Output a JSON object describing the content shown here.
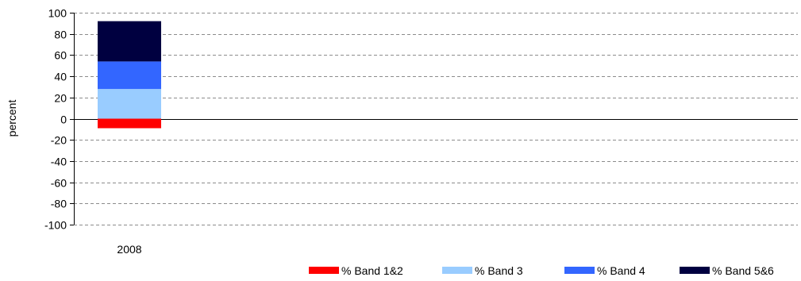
{
  "chart_data": {
    "type": "bar",
    "stacked": true,
    "categories": [
      "2008"
    ],
    "series": [
      {
        "name": "% Band 1&2",
        "values": [
          -9
        ],
        "color": "#ff0000"
      },
      {
        "name": "% Band 3",
        "values": [
          28
        ],
        "color": "#99ccff"
      },
      {
        "name": "% Band 4",
        "values": [
          26
        ],
        "color": "#3366ff"
      },
      {
        "name": "% Band 5&6",
        "values": [
          38
        ],
        "color": "#000040"
      }
    ],
    "title": "",
    "xlabel": "",
    "ylabel": "percent",
    "ylim": [
      -100,
      100
    ],
    "yticks": [
      100,
      80,
      60,
      40,
      20,
      0,
      -20,
      -40,
      -60,
      -80,
      -100
    ],
    "grid": "horizontal dashed",
    "legend_position": "bottom-right"
  }
}
